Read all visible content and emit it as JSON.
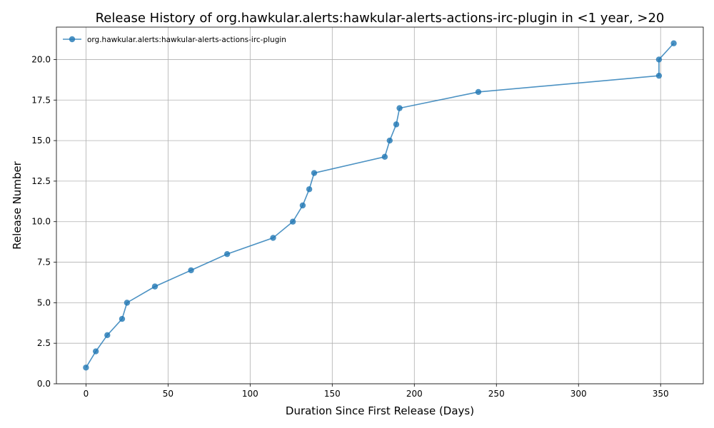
{
  "chart_data": {
    "type": "line",
    "title": "Release History of org.hawkular.alerts:hawkular-alerts-actions-irc-plugin in <1 year, >20",
    "xlabel": "Duration Since First Release (Days)",
    "ylabel": "Release Number",
    "xlim": [
      -18,
      376
    ],
    "ylim": [
      0,
      22
    ],
    "xticks": [
      0,
      50,
      100,
      150,
      200,
      250,
      300,
      350
    ],
    "yticks": [
      0.0,
      2.5,
      5.0,
      7.5,
      10.0,
      12.5,
      15.0,
      17.5,
      20.0
    ],
    "grid": true,
    "legend_position": "top-left",
    "series": [
      {
        "name": "org.hawkular.alerts:hawkular-alerts-actions-irc-plugin",
        "color": "#1f77b4",
        "points": [
          [
            0,
            1
          ],
          [
            6,
            2
          ],
          [
            13,
            3
          ],
          [
            22,
            4
          ],
          [
            25,
            5
          ],
          [
            42,
            6
          ],
          [
            64,
            7
          ],
          [
            86,
            8
          ],
          [
            114,
            9
          ],
          [
            126,
            10
          ],
          [
            132,
            11
          ],
          [
            136,
            12
          ],
          [
            139,
            13
          ],
          [
            182,
            14
          ],
          [
            185,
            15
          ],
          [
            189,
            16
          ],
          [
            191,
            17
          ],
          [
            239,
            18
          ],
          [
            349,
            19
          ],
          [
            349,
            20
          ],
          [
            358,
            21
          ]
        ]
      }
    ]
  }
}
